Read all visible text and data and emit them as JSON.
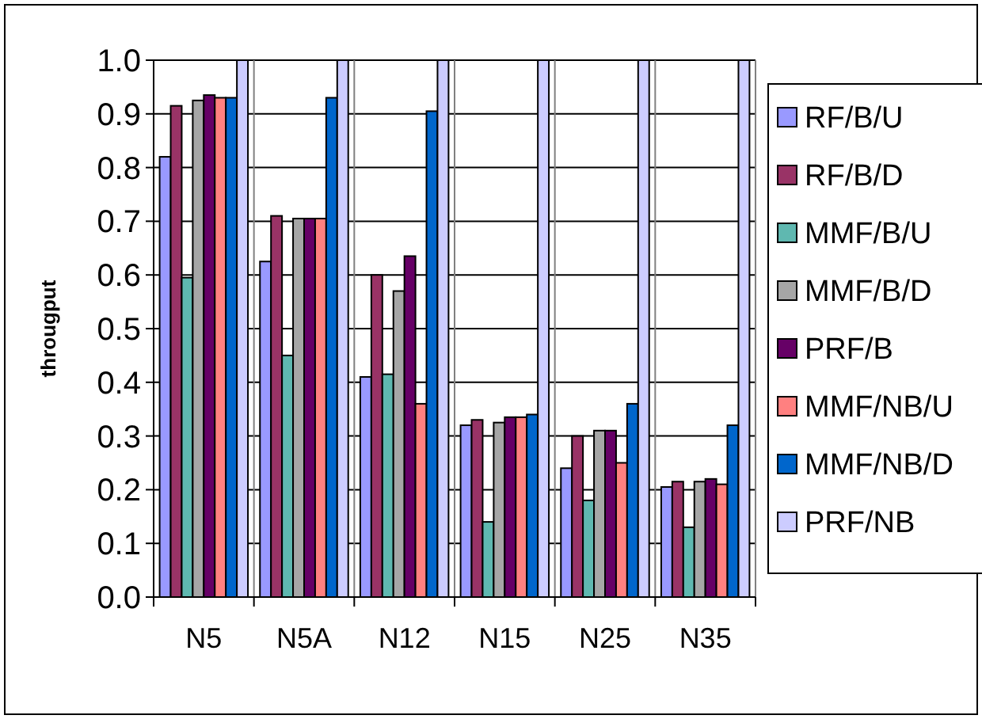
{
  "chart_data": {
    "type": "bar",
    "ylabel": "througput",
    "categories": [
      "N5",
      "N5A",
      "N12",
      "N15",
      "N25",
      "N35"
    ],
    "series": [
      {
        "name": "RF/B/U",
        "color": "#9999ff",
        "values": [
          0.82,
          0.625,
          0.41,
          0.32,
          0.24,
          0.205
        ]
      },
      {
        "name": "RF/B/D",
        "color": "#993366",
        "values": [
          0.915,
          0.71,
          0.6,
          0.33,
          0.3,
          0.215
        ]
      },
      {
        "name": "MMF/B/U",
        "color": "#5fb8b0",
        "values": [
          0.595,
          0.45,
          0.415,
          0.14,
          0.18,
          0.13
        ]
      },
      {
        "name": "MMF/B/D",
        "color": "#a6a6a6",
        "values": [
          0.925,
          0.705,
          0.57,
          0.325,
          0.31,
          0.215
        ]
      },
      {
        "name": "PRF/B",
        "color": "#660066",
        "values": [
          0.935,
          0.705,
          0.635,
          0.335,
          0.31,
          0.22
        ]
      },
      {
        "name": "MMF/NB/U",
        "color": "#ff8080",
        "values": [
          0.93,
          0.705,
          0.36,
          0.335,
          0.25,
          0.21
        ]
      },
      {
        "name": "MMF/NB/D",
        "color": "#0066cc",
        "values": [
          0.93,
          0.93,
          0.905,
          0.34,
          0.36,
          0.32
        ]
      },
      {
        "name": "PRF/NB",
        "color": "#ccccff",
        "values": [
          1.0,
          1.0,
          1.0,
          1.0,
          1.0,
          1.0
        ]
      }
    ],
    "ylim": [
      0,
      1
    ],
    "yticks": [
      {
        "value": 0,
        "label": "0.0"
      },
      {
        "value": 0.1,
        "label": "0.1"
      },
      {
        "value": 0.2,
        "label": "0.2"
      },
      {
        "value": 0.3,
        "label": "0.3"
      },
      {
        "value": 0.4,
        "label": "0.4"
      },
      {
        "value": 0.5,
        "label": "0.5"
      },
      {
        "value": 0.6,
        "label": "0.6"
      },
      {
        "value": 0.7,
        "label": "0.7"
      },
      {
        "value": 0.8,
        "label": "0.8"
      },
      {
        "value": 0.9,
        "label": "0.9"
      },
      {
        "value": 1,
        "label": "1.0"
      }
    ],
    "grid": true,
    "legend": "right"
  }
}
